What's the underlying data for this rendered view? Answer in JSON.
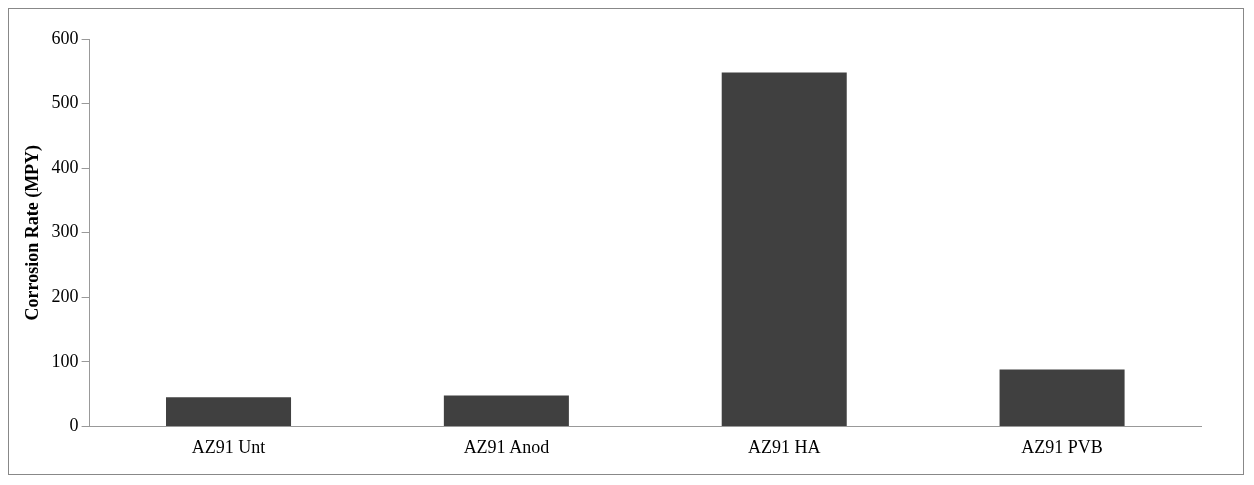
{
  "chart_data": {
    "type": "bar",
    "ylabel": "Corrosion Rate (MPY)",
    "categories": [
      "AZ91 Unt",
      "AZ91 Anod",
      "AZ91 HA",
      "AZ91 PVB"
    ],
    "values": [
      45,
      48,
      548,
      88
    ],
    "color": "#404040",
    "ylim": [
      0,
      600
    ],
    "yticks": [
      0,
      100,
      200,
      300,
      400,
      500,
      600
    ],
    "grid": false,
    "legend": false
  }
}
